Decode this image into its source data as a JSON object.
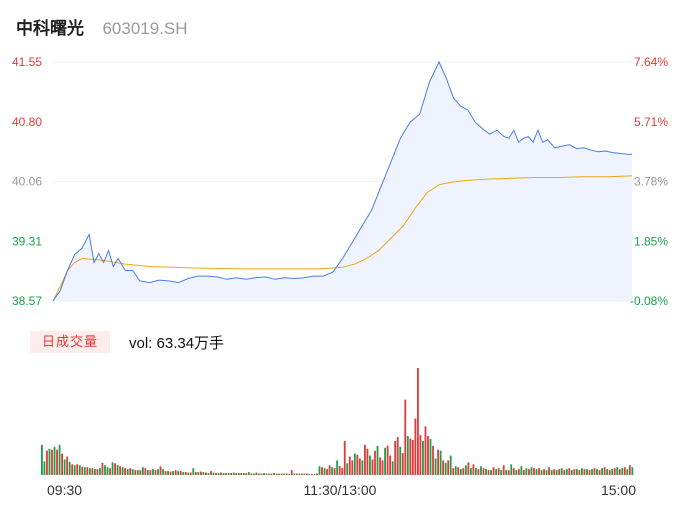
{
  "stock": {
    "name": "中科曙光",
    "code": "603019.SH"
  },
  "volume_panel": {
    "tab_label": "日成交量",
    "vol_text": "vol: 63.34万手"
  },
  "colors": {
    "price_line": "#4a7ee8",
    "avg_line": "#f2a619",
    "up": "#e23a3a",
    "down": "#1aa14a",
    "neutral": "#999999",
    "area": "#eef3fd"
  },
  "chart_data": [
    {
      "type": "line",
      "title": "",
      "xlabel": "",
      "ylabel": "",
      "x_ticks": [
        "09:30",
        "11:30/13:00",
        "15:00"
      ],
      "y_ticks_left": [
        "41.55",
        "40.80",
        "40.06",
        "39.31",
        "38.57"
      ],
      "y_ticks_right": [
        "7.64%",
        "5.71%",
        "3.78%",
        "1.85%",
        "-0.08%"
      ],
      "y_tick_colors": [
        "up",
        "up",
        "neutral",
        "down",
        "down"
      ],
      "ylim": [
        38.57,
        41.55
      ],
      "xlim": [
        0,
        240
      ],
      "series": [
        {
          "role": "price",
          "x": [
            0,
            3,
            6,
            9,
            12,
            15,
            17,
            19,
            21,
            23,
            25,
            27,
            30,
            33,
            36,
            40,
            44,
            48,
            52,
            56,
            60,
            64,
            68,
            72,
            76,
            80,
            84,
            88,
            92,
            96,
            100,
            104,
            108,
            112,
            116,
            120,
            124,
            128,
            132,
            136,
            140,
            144,
            148,
            152,
            156,
            160,
            163,
            166,
            169,
            172,
            175,
            178,
            181,
            184,
            187,
            189,
            191,
            193,
            195,
            197,
            199,
            201,
            203,
            205,
            208,
            211,
            214,
            217,
            220,
            223,
            226,
            229,
            232,
            235,
            238,
            240
          ],
          "values": [
            38.57,
            38.7,
            38.95,
            39.15,
            39.23,
            39.4,
            39.05,
            39.16,
            39.05,
            39.2,
            39.0,
            39.1,
            38.95,
            38.95,
            38.82,
            38.8,
            38.83,
            38.82,
            38.8,
            38.85,
            38.88,
            38.88,
            38.87,
            38.84,
            38.86,
            38.84,
            38.86,
            38.87,
            38.84,
            38.86,
            38.85,
            38.86,
            38.88,
            38.88,
            38.93,
            39.1,
            39.3,
            39.5,
            39.7,
            40.0,
            40.3,
            40.6,
            40.8,
            40.9,
            41.3,
            41.55,
            41.35,
            41.1,
            41.0,
            40.95,
            40.8,
            40.72,
            40.65,
            40.7,
            40.62,
            40.6,
            40.7,
            40.55,
            40.6,
            40.62,
            40.55,
            40.7,
            40.55,
            40.58,
            40.48,
            40.5,
            40.52,
            40.47,
            40.48,
            40.45,
            40.43,
            40.44,
            40.42,
            40.41,
            40.4,
            40.4
          ]
        },
        {
          "role": "average",
          "x": [
            0,
            3,
            6,
            9,
            12,
            20,
            30,
            40,
            60,
            80,
            100,
            110,
            115,
            120,
            125,
            130,
            135,
            140,
            145,
            150,
            155,
            160,
            165,
            170,
            175,
            180,
            190,
            200,
            210,
            220,
            230,
            240
          ],
          "values": [
            38.57,
            38.75,
            38.95,
            39.05,
            39.1,
            39.08,
            39.03,
            39.0,
            38.98,
            38.97,
            38.97,
            38.97,
            38.98,
            38.99,
            39.03,
            39.1,
            39.2,
            39.35,
            39.5,
            39.72,
            39.92,
            40.02,
            40.05,
            40.07,
            40.08,
            40.09,
            40.1,
            40.11,
            40.11,
            40.12,
            40.12,
            40.13
          ]
        }
      ]
    },
    {
      "type": "bar",
      "title": "",
      "unit": "万手",
      "ylim": [
        0,
        2.2
      ],
      "values": [
        0.62,
        0.28,
        0.5,
        0.54,
        0.52,
        0.58,
        0.52,
        0.62,
        0.44,
        0.32,
        0.38,
        0.27,
        0.22,
        0.2,
        0.22,
        0.2,
        0.17,
        0.16,
        0.16,
        0.14,
        0.14,
        0.12,
        0.12,
        0.14,
        0.25,
        0.2,
        0.16,
        0.14,
        0.26,
        0.24,
        0.2,
        0.18,
        0.16,
        0.14,
        0.12,
        0.14,
        0.12,
        0.1,
        0.1,
        0.1,
        0.16,
        0.14,
        0.1,
        0.1,
        0.12,
        0.1,
        0.12,
        0.18,
        0.12,
        0.08,
        0.08,
        0.07,
        0.08,
        0.1,
        0.08,
        0.08,
        0.06,
        0.06,
        0.05,
        0.05,
        0.14,
        0.06,
        0.06,
        0.07,
        0.06,
        0.05,
        0.04,
        0.08,
        0.05,
        0.04,
        0.04,
        0.05,
        0.04,
        0.04,
        0.04,
        0.04,
        0.05,
        0.04,
        0.04,
        0.04,
        0.04,
        0.04,
        0.06,
        0.03,
        0.03,
        0.05,
        0.03,
        0.03,
        0.04,
        0.03,
        0.03,
        0.03,
        0.04,
        0.03,
        0.03,
        0.03,
        0.03,
        0.03,
        0.02,
        0.1,
        0.03,
        0.03,
        0.03,
        0.03,
        0.03,
        0.03,
        0.02,
        0.02,
        0.02,
        0.03,
        0.18,
        0.16,
        0.14,
        0.12,
        0.2,
        0.16,
        0.14,
        0.3,
        0.18,
        0.14,
        0.7,
        0.24,
        0.38,
        0.3,
        0.44,
        0.42,
        0.34,
        0.3,
        0.62,
        0.54,
        0.4,
        0.32,
        0.5,
        0.6,
        0.36,
        0.3,
        0.56,
        0.6,
        0.4,
        0.28,
        0.7,
        0.78,
        0.58,
        0.45,
        1.55,
        0.8,
        0.75,
        0.72,
        1.16,
        2.2,
        0.82,
        0.7,
        1.0,
        0.8,
        0.74,
        0.6,
        0.34,
        0.52,
        0.5,
        0.3,
        0.25,
        0.3,
        0.4,
        0.14,
        0.18,
        0.16,
        0.12,
        0.14,
        0.2,
        0.26,
        0.14,
        0.22,
        0.14,
        0.12,
        0.18,
        0.14,
        0.12,
        0.1,
        0.1,
        0.16,
        0.12,
        0.14,
        0.1,
        0.2,
        0.1,
        0.1,
        0.22,
        0.14,
        0.1,
        0.12,
        0.18,
        0.1,
        0.14,
        0.12,
        0.16,
        0.14,
        0.12,
        0.14,
        0.1,
        0.12,
        0.1,
        0.16,
        0.1,
        0.12,
        0.1,
        0.12,
        0.14,
        0.1,
        0.12,
        0.14,
        0.1,
        0.12,
        0.12,
        0.1,
        0.14,
        0.12,
        0.12,
        0.1,
        0.12,
        0.14,
        0.12,
        0.1,
        0.14,
        0.16,
        0.12,
        0.1,
        0.12,
        0.14,
        0.16,
        0.12,
        0.14,
        0.16,
        0.12,
        0.2,
        0.16
      ],
      "colors": [
        "down",
        "down",
        "up",
        "down",
        "up",
        "down",
        "up",
        "down",
        "up",
        "down",
        "up",
        "down",
        "up",
        "down",
        "up",
        "down",
        "up",
        "down",
        "up",
        "down",
        "up",
        "down",
        "up",
        "down",
        "up",
        "down",
        "down",
        "up",
        "down",
        "up",
        "down",
        "up",
        "down",
        "up",
        "down",
        "up",
        "down",
        "up",
        "down",
        "up",
        "down",
        "up",
        "down",
        "up",
        "down",
        "up",
        "down",
        "up",
        "down",
        "up",
        "down",
        "up",
        "down",
        "up",
        "down",
        "up",
        "down",
        "up",
        "down",
        "up",
        "down",
        "up",
        "down",
        "up",
        "down",
        "up",
        "down",
        "up",
        "down",
        "up",
        "down",
        "up",
        "down",
        "up",
        "down",
        "up",
        "down",
        "up",
        "down",
        "up",
        "down",
        "up",
        "down",
        "up",
        "down",
        "up",
        "down",
        "up",
        "down",
        "up",
        "down",
        "up",
        "down",
        "up",
        "down",
        "up",
        "down",
        "up",
        "down",
        "up",
        "down",
        "up",
        "down",
        "up",
        "down",
        "up",
        "down",
        "up",
        "down",
        "up",
        "down",
        "up",
        "down",
        "up",
        "up",
        "down",
        "up",
        "down",
        "up",
        "up",
        "up",
        "down",
        "up",
        "up",
        "down",
        "up",
        "up",
        "down",
        "up",
        "up",
        "down",
        "up",
        "up",
        "down",
        "up",
        "up",
        "down",
        "up",
        "up",
        "down",
        "up",
        "up",
        "down",
        "up",
        "up",
        "down",
        "up",
        "up",
        "up",
        "up",
        "up",
        "down",
        "up",
        "up",
        "down",
        "up",
        "down",
        "up",
        "down",
        "up",
        "down",
        "up",
        "down",
        "up",
        "down",
        "up",
        "down",
        "up",
        "down",
        "up",
        "down",
        "up",
        "down",
        "up",
        "down",
        "up",
        "down",
        "up",
        "down",
        "up",
        "down",
        "up",
        "down",
        "up",
        "down",
        "up",
        "down",
        "up",
        "down",
        "up",
        "down",
        "up",
        "down",
        "up",
        "down",
        "up",
        "down",
        "up",
        "down",
        "up",
        "down",
        "up",
        "down",
        "up",
        "down",
        "up",
        "down",
        "up",
        "down",
        "up",
        "down",
        "up",
        "down",
        "up",
        "down",
        "up",
        "down",
        "up",
        "down",
        "up",
        "down",
        "up",
        "down",
        "up",
        "down",
        "up",
        "down",
        "up",
        "down",
        "up",
        "down",
        "up",
        "down",
        "up",
        "down",
        "up",
        "down",
        "up",
        "down",
        "up",
        "down",
        "up",
        "up"
      ]
    }
  ]
}
